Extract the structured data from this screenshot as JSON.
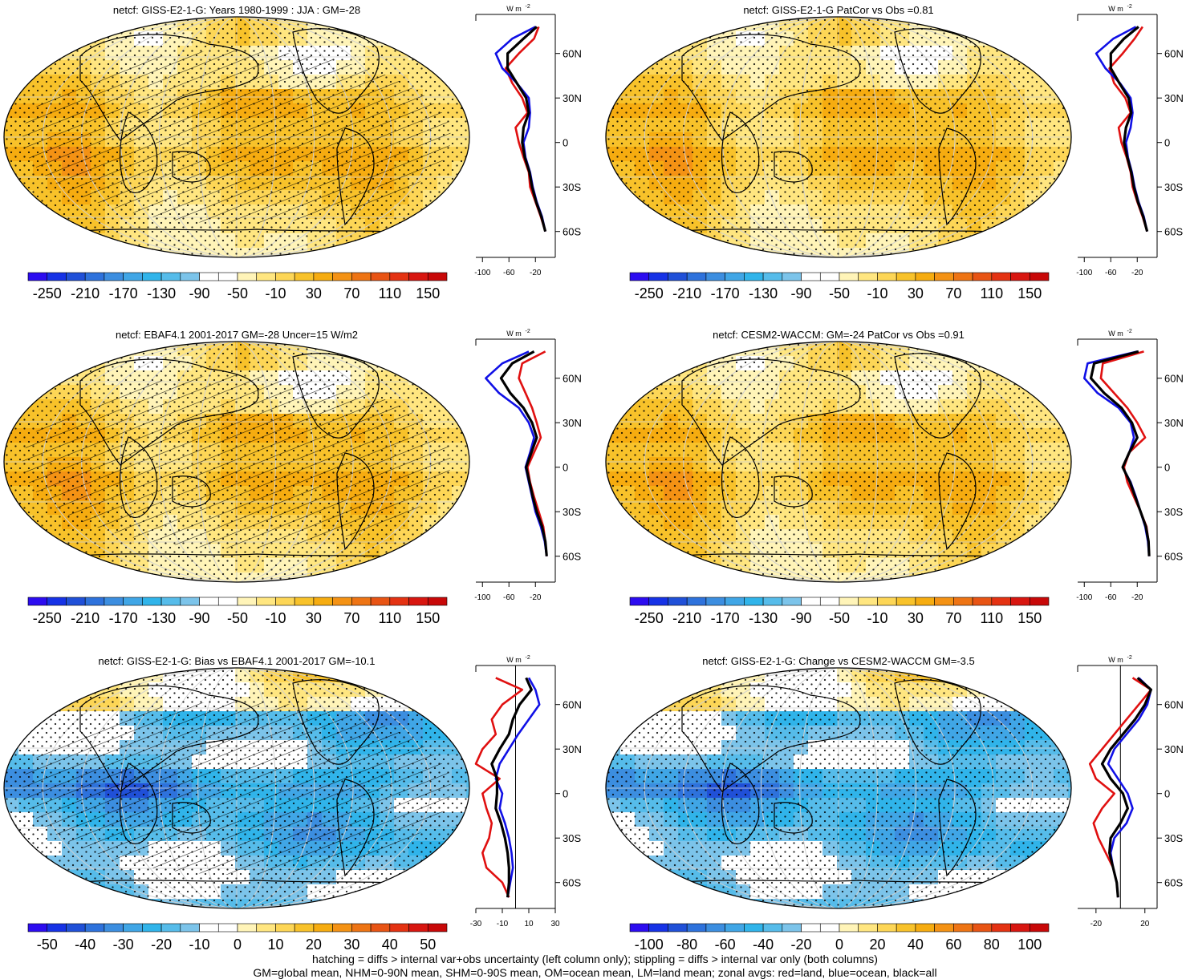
{
  "chart_data": {
    "type": "heatmap",
    "colors": {
      "ramp": [
        "#2c0cf0",
        "#1632e6",
        "#2050d8",
        "#2e72dc",
        "#3c8ee0",
        "#40a6e6",
        "#30b4ea",
        "#56bcea",
        "#7cc4ea",
        "#ffffff",
        "#ffffff",
        "#fff4b8",
        "#ffe680",
        "#fdd656",
        "#f8c22a",
        "#f6ac10",
        "#f49214",
        "#ee7414",
        "#e85414",
        "#e43212",
        "#d81610",
        "#c80808"
      ],
      "land": "#000000",
      "ocean": "#1010e6",
      "all": "#e01010"
    },
    "panels": [
      {
        "title": "netcf: GISS-E2-1-G: Years 1980-1999 : JJA : GM=-28",
        "field": "absolute",
        "hatch": true,
        "colorbar_labels": [
          "-250",
          "-210",
          "-170",
          "-130",
          "-90",
          "-50",
          "-10",
          "30",
          "70",
          "110",
          "150"
        ],
        "zonal": {
          "unit": "W m",
          "unit_exp": "-2",
          "lat_labels": [
            "60N",
            "30N",
            "0",
            "30S",
            "60S"
          ],
          "lat_values": [
            60,
            30,
            0,
            -30,
            -60
          ],
          "x_ticklabels": [
            "-100",
            "-60",
            "-20"
          ],
          "x_tickvalues": [
            -100,
            -60,
            -20
          ],
          "xlim": [
            -110,
            10
          ],
          "zero_line": false,
          "lat": [
            78,
            70,
            60,
            50,
            40,
            30,
            20,
            10,
            0,
            -10,
            -20,
            -30,
            -40,
            -50,
            -60
          ],
          "land": [
            -15,
            -22,
            -45,
            -65,
            -55,
            -40,
            -32,
            -50,
            -45,
            -38,
            -30,
            -28,
            -20,
            -12,
            -5
          ],
          "ocean": [
            -20,
            -55,
            -80,
            -70,
            -48,
            -30,
            -28,
            -30,
            -38,
            -35,
            -28,
            -24,
            -18,
            -10,
            -5
          ],
          "all": [
            -18,
            -38,
            -62,
            -62,
            -48,
            -34,
            -30,
            -38,
            -40,
            -36,
            -29,
            -25,
            -19,
            -11,
            -5
          ]
        }
      },
      {
        "title": "netcf: GISS-E2-1-G PatCor vs Obs =0.81",
        "field": "absolute",
        "hatch": false,
        "colorbar_labels": [
          "-250",
          "-210",
          "-170",
          "-130",
          "-90",
          "-50",
          "-10",
          "30",
          "70",
          "110",
          "150"
        ],
        "zonal": {
          "unit": "W m",
          "unit_exp": "-2",
          "lat_labels": [
            "60N",
            "30N",
            "0",
            "30S",
            "60S"
          ],
          "lat_values": [
            60,
            30,
            0,
            -30,
            -60
          ],
          "x_ticklabels": [
            "-100",
            "-60",
            "-20"
          ],
          "x_tickvalues": [
            -100,
            -60,
            -20
          ],
          "xlim": [
            -110,
            10
          ],
          "zero_line": false,
          "lat": [
            78,
            70,
            60,
            50,
            40,
            30,
            20,
            10,
            0,
            -10,
            -20,
            -30,
            -40,
            -50,
            -60
          ],
          "land": [
            -12,
            -24,
            -42,
            -62,
            -55,
            -38,
            -30,
            -48,
            -44,
            -36,
            -30,
            -27,
            -20,
            -12,
            -5
          ],
          "ocean": [
            -22,
            -56,
            -82,
            -68,
            -46,
            -30,
            -27,
            -30,
            -37,
            -34,
            -28,
            -24,
            -18,
            -10,
            -5
          ],
          "all": [
            -18,
            -40,
            -60,
            -60,
            -47,
            -33,
            -29,
            -37,
            -40,
            -35,
            -29,
            -25,
            -19,
            -11,
            -5
          ]
        }
      },
      {
        "title": "netcf: EBAF4.1 2001-2017 GM=-28 Uncer=15 W/m2",
        "field": "absolute",
        "hatch": true,
        "colorbar_labels": [
          "-250",
          "-210",
          "-170",
          "-130",
          "-90",
          "-50",
          "-10",
          "30",
          "70",
          "110",
          "150"
        ],
        "zonal": {
          "unit": "W m",
          "unit_exp": "-2",
          "lat_labels": [
            "60N",
            "30N",
            "0",
            "30S",
            "60S"
          ],
          "lat_values": [
            60,
            30,
            0,
            -30,
            -60
          ],
          "x_ticklabels": [
            "-100",
            "-60",
            "-20"
          ],
          "x_tickvalues": [
            -100,
            -60,
            -20
          ],
          "xlim": [
            -110,
            10
          ],
          "zero_line": false,
          "lat": [
            78,
            70,
            60,
            50,
            40,
            30,
            20,
            10,
            0,
            -10,
            -20,
            -30,
            -40,
            -50,
            -60
          ],
          "land": [
            -5,
            -40,
            -45,
            -35,
            -25,
            -18,
            -12,
            -22,
            -32,
            -28,
            -22,
            -15,
            -8,
            -5,
            -3
          ],
          "ocean": [
            -30,
            -70,
            -95,
            -75,
            -45,
            -30,
            -22,
            -28,
            -35,
            -30,
            -25,
            -20,
            -12,
            -6,
            -3
          ],
          "all": [
            -22,
            -55,
            -72,
            -58,
            -38,
            -25,
            -18,
            -26,
            -34,
            -29,
            -24,
            -18,
            -10,
            -5,
            -3
          ]
        }
      },
      {
        "title": "netcf: CESM2-WACCM: GM=-24 PatCor vs Obs =0.91",
        "field": "absolute",
        "hatch": false,
        "colorbar_labels": [
          "-250",
          "-210",
          "-170",
          "-130",
          "-90",
          "-50",
          "-10",
          "30",
          "70",
          "110",
          "150"
        ],
        "zonal": {
          "unit": "W m",
          "unit_exp": "-2",
          "lat_labels": [
            "60N",
            "30N",
            "0",
            "30S",
            "60S"
          ],
          "lat_values": [
            60,
            30,
            0,
            -30,
            -60
          ],
          "x_ticklabels": [
            "-100",
            "-60",
            "-20"
          ],
          "x_tickvalues": [
            -100,
            -60,
            -20
          ],
          "xlim": [
            -110,
            10
          ],
          "zero_line": false,
          "lat": [
            78,
            70,
            60,
            50,
            40,
            30,
            20,
            10,
            0,
            -10,
            -20,
            -30,
            -40,
            -50,
            -60
          ],
          "land": [
            -10,
            -72,
            -75,
            -55,
            -35,
            -20,
            -8,
            -32,
            -40,
            -35,
            -25,
            -15,
            -6,
            -3,
            -2
          ],
          "ocean": [
            -20,
            -95,
            -100,
            -80,
            -48,
            -30,
            -25,
            -32,
            -42,
            -30,
            -22,
            -15,
            -8,
            -4,
            -2
          ],
          "all": [
            -18,
            -85,
            -90,
            -70,
            -44,
            -28,
            -20,
            -32,
            -42,
            -31,
            -23,
            -15,
            -7,
            -3,
            -2
          ]
        }
      },
      {
        "title": "netcf: GISS-E2-1-G: Bias vs EBAF4.1 2001-2017 GM=-10.1",
        "field": "difference",
        "hatch": true,
        "colorbar_labels": [
          "-50",
          "-40",
          "-30",
          "-20",
          "-10",
          "0",
          "10",
          "20",
          "30",
          "40",
          "50"
        ],
        "zonal": {
          "unit": "W m",
          "unit_exp": "-2",
          "lat_labels": [
            "60N",
            "30N",
            "0",
            "30S",
            "60S"
          ],
          "lat_values": [
            60,
            30,
            0,
            -30,
            -60
          ],
          "x_ticklabels": [
            "-30",
            "-10",
            "10",
            "30"
          ],
          "x_tickvalues": [
            -30,
            -10,
            10,
            30
          ],
          "xlim": [
            -30,
            30
          ],
          "zero_line": true,
          "lat": [
            78,
            70,
            60,
            50,
            40,
            30,
            20,
            10,
            0,
            -10,
            -20,
            -30,
            -40,
            -50,
            -60,
            -70
          ],
          "land": [
            -15,
            5,
            -10,
            -18,
            -15,
            -25,
            -30,
            -12,
            -25,
            -22,
            -18,
            -20,
            -25,
            -22,
            -10,
            -5
          ],
          "ocean": [
            10,
            15,
            18,
            10,
            2,
            -5,
            -12,
            -15,
            -10,
            -12,
            -8,
            -5,
            -3,
            -2,
            -4,
            -6
          ],
          "all": [
            8,
            12,
            3,
            -2,
            -5,
            -12,
            -18,
            -14,
            -14,
            -15,
            -11,
            -8,
            -6,
            -5,
            -5,
            -6
          ]
        }
      },
      {
        "title": "netcf: GISS-E2-1-G: Change vs CESM2-WACCM GM=-3.5",
        "field": "difference",
        "hatch": false,
        "colorbar_labels": [
          "-100",
          "-80",
          "-60",
          "-40",
          "-20",
          "0",
          "20",
          "40",
          "60",
          "80",
          "100"
        ],
        "zonal": {
          "unit": "W m",
          "unit_exp": "-2",
          "lat_labels": [
            "60N",
            "30N",
            "0",
            "30S",
            "60S"
          ],
          "lat_values": [
            60,
            30,
            0,
            -30,
            -60
          ],
          "x_ticklabels": [
            "-20",
            "20"
          ],
          "x_tickvalues": [
            -20,
            20
          ],
          "xlim": [
            -35,
            30
          ],
          "zero_line": true,
          "lat": [
            78,
            70,
            60,
            50,
            40,
            30,
            20,
            10,
            0,
            -10,
            -20,
            -30,
            -40,
            -50,
            -60,
            -70
          ],
          "land": [
            10,
            25,
            15,
            5,
            -5,
            -15,
            -25,
            -20,
            -5,
            -15,
            -22,
            -18,
            -12,
            -6,
            -3,
            -2
          ],
          "ocean": [
            15,
            25,
            22,
            15,
            5,
            -5,
            -10,
            -2,
            6,
            10,
            5,
            -5,
            -8,
            -6,
            -3,
            -2
          ],
          "all": [
            14,
            25,
            20,
            12,
            2,
            -8,
            -15,
            -8,
            2,
            6,
            0,
            -8,
            -9,
            -6,
            -3,
            -2
          ]
        }
      }
    ]
  },
  "footnote": {
    "line1": "hatching = diffs > internal var+obs uncertainty (left column only); stippling = diffs > internal var only (both columns)",
    "line2": "GM=global mean, NHM=0-90N mean, SHM=0-90S mean, OM=ocean mean, LM=land mean; zonal avgs: red=land, blue=ocean, black=all"
  }
}
